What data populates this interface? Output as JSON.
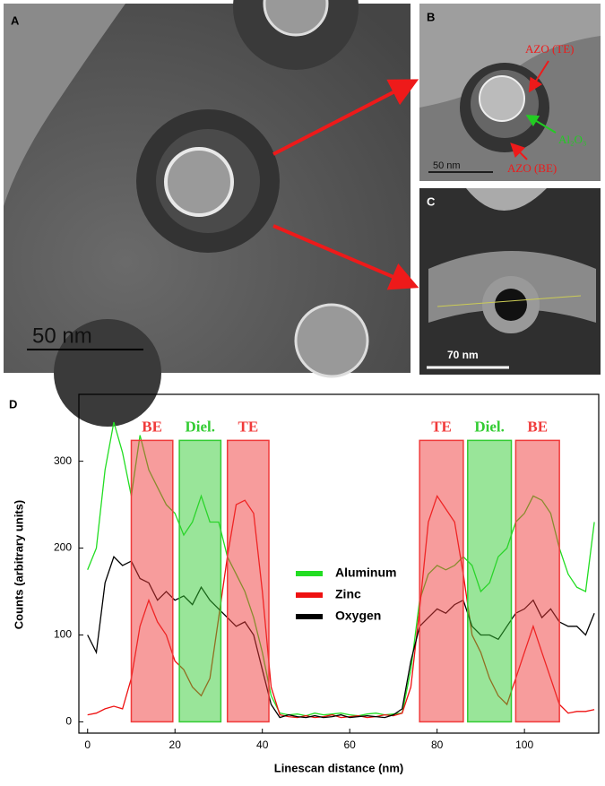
{
  "panels": {
    "a": {
      "label": "A",
      "scale_bar": "50 nm"
    },
    "b": {
      "label": "B",
      "scale_bar": "50 nm",
      "annotations": [
        "AZO  (TE)",
        "Al₂O₃",
        "AZO  (BE)"
      ]
    },
    "c": {
      "label": "C",
      "scale_bar": "70 nm"
    }
  },
  "chart_data": {
    "type": "line",
    "label": "D",
    "x_label": "Linescan distance (nm)",
    "y_label": "Counts (arbitrary units)",
    "x": [
      0,
      2,
      4,
      6,
      8,
      10,
      12,
      14,
      16,
      18,
      20,
      22,
      24,
      26,
      28,
      30,
      32,
      34,
      36,
      38,
      40,
      42,
      44,
      46,
      48,
      50,
      52,
      54,
      56,
      58,
      60,
      62,
      64,
      66,
      68,
      70,
      72,
      74,
      76,
      78,
      80,
      82,
      84,
      86,
      88,
      90,
      92,
      94,
      96,
      98,
      100,
      102,
      104,
      106,
      108,
      110,
      112,
      114,
      116
    ],
    "series": [
      {
        "name": "Aluminum",
        "color": "#22dd22",
        "values": [
          175,
          200,
          290,
          345,
          310,
          260,
          330,
          290,
          270,
          250,
          240,
          215,
          230,
          260,
          230,
          230,
          190,
          170,
          150,
          120,
          80,
          30,
          10,
          8,
          9,
          7,
          10,
          8,
          9,
          10,
          8,
          7,
          9,
          10,
          8,
          9,
          10,
          60,
          140,
          170,
          180,
          175,
          180,
          190,
          180,
          150,
          160,
          190,
          200,
          230,
          240,
          260,
          255,
          240,
          200,
          170,
          155,
          150,
          230
        ]
      },
      {
        "name": "Zinc",
        "color": "#ee1111",
        "values": [
          8,
          10,
          15,
          18,
          15,
          50,
          110,
          140,
          115,
          100,
          70,
          60,
          40,
          30,
          50,
          120,
          190,
          250,
          255,
          240,
          150,
          40,
          8,
          6,
          5,
          7,
          5,
          6,
          8,
          5,
          6,
          7,
          5,
          6,
          8,
          7,
          10,
          40,
          130,
          230,
          260,
          245,
          230,
          170,
          100,
          80,
          50,
          30,
          20,
          50,
          80,
          110,
          80,
          50,
          20,
          10,
          12,
          12,
          14
        ]
      },
      {
        "name": "Oxygen",
        "color": "#000000",
        "values": [
          100,
          80,
          160,
          190,
          180,
          185,
          165,
          160,
          140,
          150,
          140,
          145,
          135,
          155,
          140,
          130,
          120,
          110,
          115,
          100,
          60,
          20,
          5,
          8,
          6,
          5,
          7,
          5,
          6,
          8,
          5,
          6,
          7,
          6,
          5,
          8,
          15,
          70,
          110,
          120,
          130,
          125,
          135,
          140,
          110,
          100,
          100,
          95,
          110,
          125,
          130,
          140,
          120,
          130,
          115,
          110,
          110,
          100,
          125
        ]
      }
    ],
    "regions": [
      {
        "label": "BE",
        "start": 10,
        "end": 19.5,
        "top": 324,
        "color": "#f03a3a"
      },
      {
        "label": "Diel.",
        "start": 21,
        "end": 30.5,
        "top": 324,
        "color": "#33cc33"
      },
      {
        "label": "TE",
        "start": 32,
        "end": 41.5,
        "top": 324,
        "color": "#f03a3a"
      },
      {
        "label": "TE",
        "start": 76,
        "end": 86,
        "top": 324,
        "color": "#f03a3a"
      },
      {
        "label": "Diel.",
        "start": 87,
        "end": 97,
        "top": 324,
        "color": "#33cc33"
      },
      {
        "label": "BE",
        "start": 98,
        "end": 108,
        "top": 324,
        "color": "#f03a3a"
      }
    ],
    "xlim": [
      -2,
      117
    ],
    "ylim": [
      -13,
      377
    ],
    "xticks": [
      0,
      20,
      40,
      60,
      80,
      100
    ],
    "yticks": [
      0,
      100,
      200,
      300
    ],
    "legend": "center"
  }
}
